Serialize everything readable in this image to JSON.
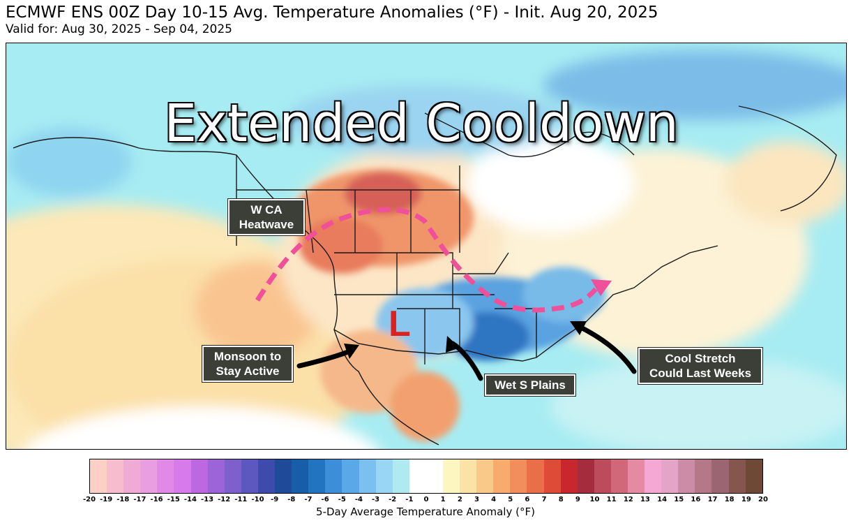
{
  "header": {
    "title": "ECMWF ENS 00Z Day 10-15 Avg. Temperature Anomalies (°F) - Init. Aug 20, 2025",
    "subtitle": "Valid for: Aug 30, 2025 - Sep 04, 2025"
  },
  "map": {
    "headline": "Extended Cooldown",
    "low_marker": "L",
    "callouts": {
      "w_ca_heatwave": "W CA\nHeatwave",
      "monsoon": "Monsoon to\nStay Active",
      "wet_s_plains": "Wet S Plains",
      "cool_stretch": "Cool Stretch\nCould Last Weeks"
    },
    "colors": {
      "trough_line": "#f0509a",
      "low_marker": "#e0201c",
      "arrows": "#000000"
    }
  },
  "legend": {
    "label": "5-Day Average Temperature Anomaly (°F)",
    "ticks": [
      "-20",
      "-19",
      "-18",
      "-17",
      "-16",
      "-15",
      "-14",
      "-13",
      "-12",
      "-11",
      "-10",
      "-9",
      "-8",
      "-7",
      "-6",
      "-5",
      "-4",
      "-3",
      "-2",
      "-1",
      "0",
      "1",
      "2",
      "3",
      "4",
      "5",
      "6",
      "7",
      "8",
      "9",
      "10",
      "11",
      "12",
      "13",
      "14",
      "15",
      "16",
      "17",
      "18",
      "19",
      "20"
    ],
    "colors": [
      "#fcd0c4",
      "#f8bccf",
      "#efaad6",
      "#e89ee0",
      "#e089e6",
      "#d77aea",
      "#bd68e0",
      "#9c64d8",
      "#7e60cc",
      "#5c58c0",
      "#3e4aac",
      "#1e4a98",
      "#165fa8",
      "#2274c0",
      "#3c8ed8",
      "#5aa8e8",
      "#7cc0f0",
      "#98d6f4",
      "#aeeaf0",
      "#ffffff",
      "#ffffff",
      "#fdf6c0",
      "#fbe2a6",
      "#f9c98a",
      "#f7ac6e",
      "#f18e5c",
      "#ea6e48",
      "#de4c38",
      "#c8282c",
      "#a42c3c",
      "#bc4c5c",
      "#d0687a",
      "#e68aa4",
      "#f6a8d4",
      "#e4a4c8",
      "#cc8ca8",
      "#b47888",
      "#9c6670",
      "#84564e",
      "#6e4a36"
    ]
  }
}
